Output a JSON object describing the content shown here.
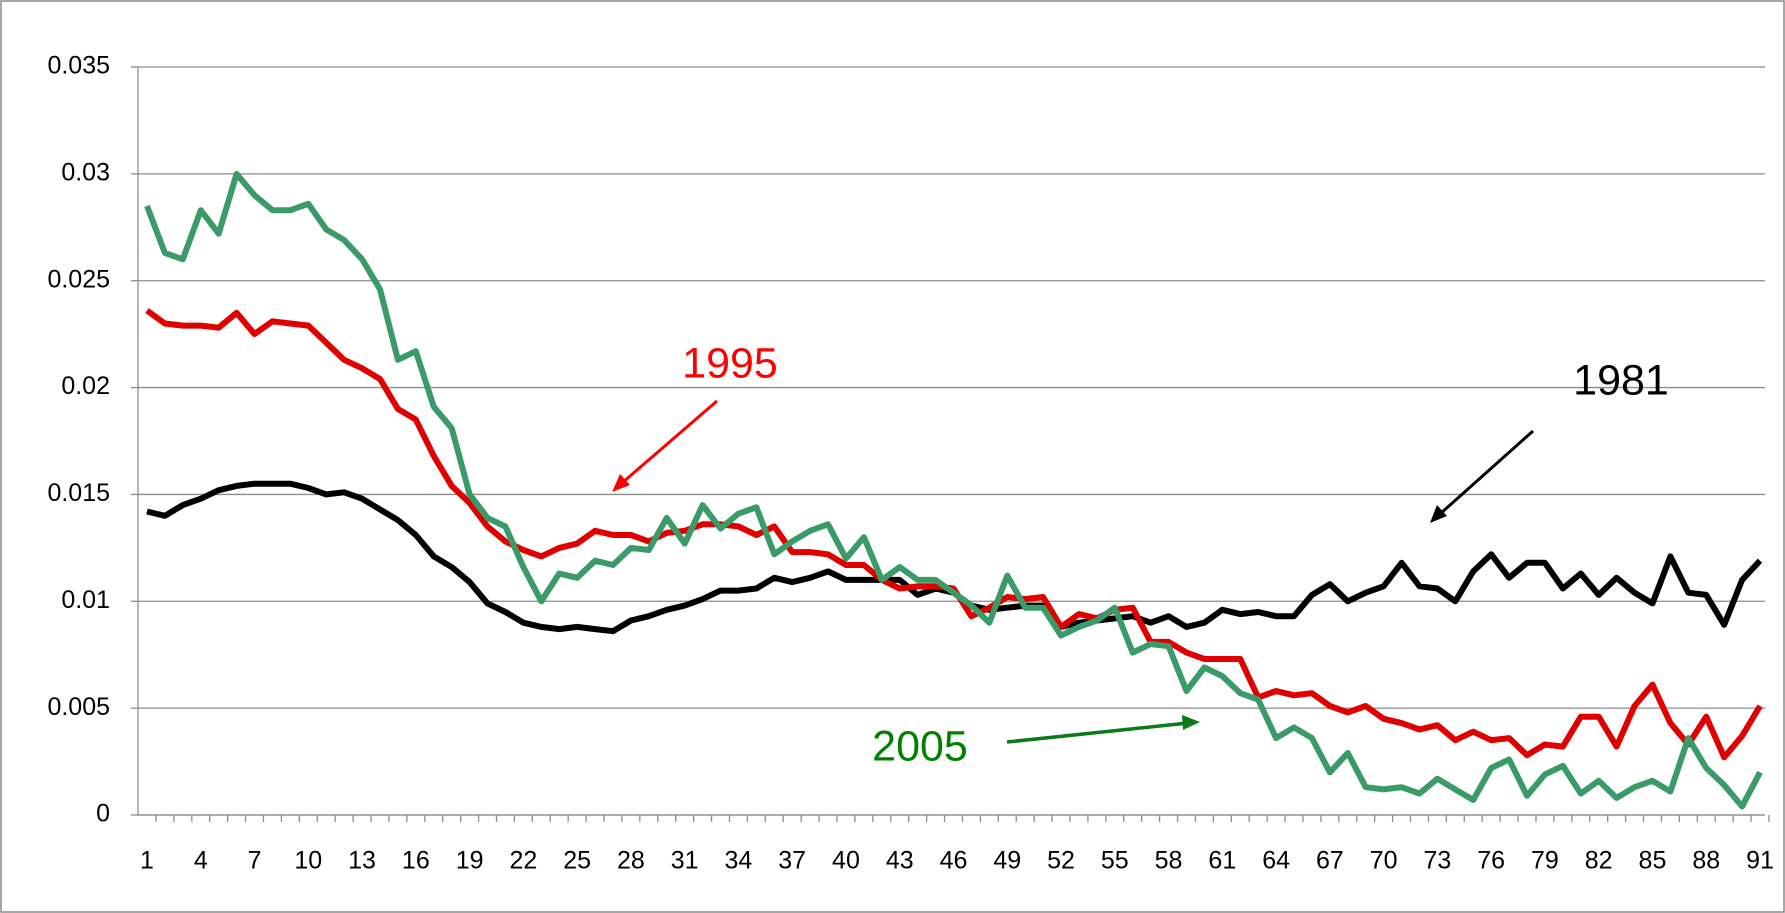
{
  "chart_data": {
    "type": "line",
    "categories": [
      1,
      null,
      null,
      4,
      null,
      null,
      7,
      null,
      null,
      10,
      null,
      null,
      13,
      null,
      null,
      16,
      null,
      null,
      19,
      null,
      null,
      22,
      null,
      null,
      25,
      null,
      null,
      28,
      null,
      null,
      31,
      null,
      null,
      34,
      null,
      null,
      37,
      null,
      null,
      40,
      null,
      null,
      43,
      null,
      null,
      46,
      null,
      null,
      49,
      null,
      null,
      52,
      null,
      null,
      55,
      null,
      null,
      58,
      null,
      null,
      61,
      null,
      null,
      64,
      null,
      null,
      67,
      null,
      null,
      70,
      null,
      null,
      73,
      null,
      null,
      76,
      null,
      null,
      79,
      null,
      null,
      82,
      null,
      null,
      85,
      null,
      null,
      88,
      null,
      null,
      91
    ],
    "series": [
      {
        "name": "1981",
        "color": "#000000",
        "text_color": "#000000",
        "values": [
          0.0142,
          0.014,
          0.0145,
          0.0148,
          0.0152,
          0.0154,
          0.0155,
          0.0155,
          0.0155,
          0.0153,
          0.015,
          0.0151,
          0.0148,
          0.0143,
          0.0138,
          0.0131,
          0.0121,
          0.0116,
          0.0109,
          0.0099,
          0.0095,
          0.009,
          0.0088,
          0.0087,
          0.0088,
          0.0087,
          0.0086,
          0.0091,
          0.0093,
          0.0096,
          0.0098,
          0.0101,
          0.0105,
          0.0105,
          0.0106,
          0.0111,
          0.0109,
          0.0111,
          0.0114,
          0.011,
          0.011,
          0.011,
          0.011,
          0.0103,
          0.0106,
          0.0104,
          0.0098,
          0.0096,
          0.0097,
          0.0098,
          0.0098,
          0.0088,
          0.009,
          0.0091,
          0.0092,
          0.0093,
          0.009,
          0.0093,
          0.0088,
          0.009,
          0.0096,
          0.0094,
          0.0095,
          0.0093,
          0.0093,
          0.0103,
          0.0108,
          0.01,
          0.0104,
          0.0107,
          0.0118,
          0.0107,
          0.0106,
          0.01,
          0.0114,
          0.0122,
          0.0111,
          0.0118,
          0.0118,
          0.0106,
          0.0113,
          0.0103,
          0.0111,
          0.0104,
          0.0099,
          0.0121,
          0.0104,
          0.0103,
          0.0089,
          0.011,
          0.0119
        ]
      },
      {
        "name": "1995",
        "color": "#e00000",
        "text_color": "#ff0000",
        "values": [
          0.0236,
          0.023,
          0.0229,
          0.0229,
          0.0228,
          0.0235,
          0.0225,
          0.0231,
          0.023,
          0.0229,
          0.0221,
          0.0213,
          0.0209,
          0.0204,
          0.019,
          0.0185,
          0.0168,
          0.0154,
          0.0146,
          0.0135,
          0.0128,
          0.0124,
          0.0121,
          0.0125,
          0.0127,
          0.0133,
          0.0131,
          0.0131,
          0.0128,
          0.0132,
          0.0133,
          0.0136,
          0.0136,
          0.0135,
          0.0131,
          0.0135,
          0.0123,
          0.0123,
          0.0122,
          0.0117,
          0.0117,
          0.011,
          0.0106,
          0.0107,
          0.0107,
          0.0106,
          0.0093,
          0.0097,
          0.0102,
          0.0101,
          0.0102,
          0.0088,
          0.0094,
          0.0092,
          0.0096,
          0.0097,
          0.0081,
          0.0081,
          0.0076,
          0.0073,
          0.0073,
          0.0073,
          0.0055,
          0.0058,
          0.0056,
          0.0057,
          0.0051,
          0.0048,
          0.0051,
          0.0045,
          0.0043,
          0.004,
          0.0042,
          0.0035,
          0.0039,
          0.0035,
          0.0036,
          0.0028,
          0.0033,
          0.0032,
          0.0046,
          0.0046,
          0.0032,
          0.0051,
          0.0061,
          0.0043,
          0.0033,
          0.0046,
          0.0027,
          0.0037,
          0.0051
        ]
      },
      {
        "name": "2005",
        "color": "#3a9a68",
        "text_color": "#008000",
        "values": [
          0.0285,
          0.0263,
          0.026,
          0.0283,
          0.0272,
          0.03,
          0.029,
          0.0283,
          0.0283,
          0.0286,
          0.0274,
          0.0269,
          0.026,
          0.0246,
          0.0213,
          0.0217,
          0.0191,
          0.0181,
          0.015,
          0.0139,
          0.0135,
          0.0116,
          0.01,
          0.0113,
          0.0111,
          0.0119,
          0.0117,
          0.0125,
          0.0124,
          0.0139,
          0.0127,
          0.0145,
          0.0134,
          0.0141,
          0.0144,
          0.0122,
          0.0128,
          0.0133,
          0.0136,
          0.012,
          0.013,
          0.011,
          0.0116,
          0.011,
          0.011,
          0.0104,
          0.0098,
          0.009,
          0.0112,
          0.0097,
          0.0097,
          0.0084,
          0.0088,
          0.0091,
          0.0097,
          0.0076,
          0.008,
          0.0079,
          0.0058,
          0.0069,
          0.0065,
          0.0057,
          0.0054,
          0.0036,
          0.0041,
          0.0036,
          0.002,
          0.0029,
          0.0013,
          0.0012,
          0.0013,
          0.001,
          0.0017,
          0.0012,
          0.0007,
          0.0022,
          0.0026,
          0.0009,
          0.0019,
          0.0023,
          0.001,
          0.0016,
          0.0008,
          0.0013,
          0.0016,
          0.0011,
          0.0036,
          0.0022,
          0.0014,
          0.0004,
          0.002
        ]
      }
    ],
    "ylim": [
      0,
      0.035
    ],
    "yticks": [
      0,
      0.005,
      0.01,
      0.015,
      0.02,
      0.025,
      0.03,
      0.035
    ],
    "grid": true
  }
}
